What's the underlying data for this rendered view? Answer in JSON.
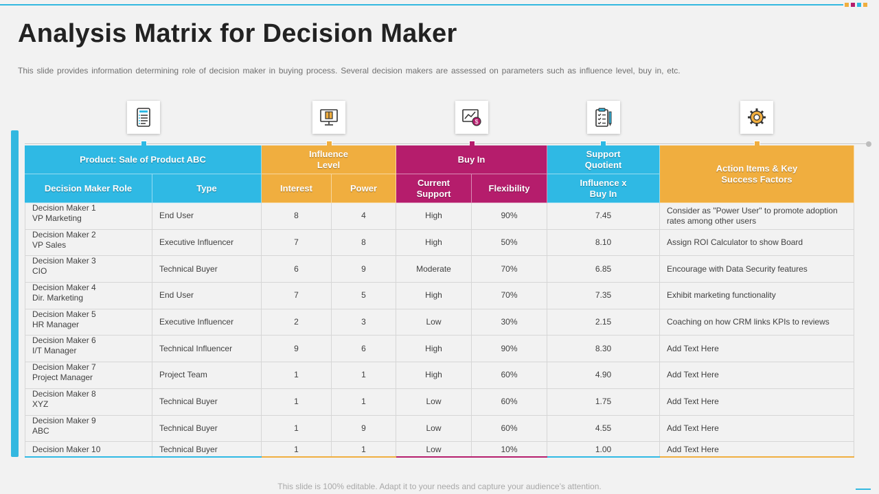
{
  "slide": {
    "title": "Analysis Matrix for Decision Maker",
    "subtitle": "This slide provides information determining role of decision maker in buying process. Several decision makers are assessed on parameters such as influence level, buy in, etc.",
    "footer": "This slide is 100% editable. Adapt it to your needs and capture your audience’s attention."
  },
  "icons": [
    "document-list-icon",
    "monitor-box-icon",
    "chart-money-icon",
    "clipboard-checklist-icon",
    "gear-head-icon"
  ],
  "colors": {
    "blue": "#2fb9e4",
    "orange": "#f0ae3f",
    "magenta": "#b51d6c"
  },
  "table": {
    "header": {
      "product": "Product:  Sale of Product ABC",
      "influence_level": "Influence Level",
      "buy_in": "Buy In",
      "support_quotient": "Support Quotient",
      "action_items": "Action Items & Key Success Factors",
      "role": "Decision Maker Role",
      "type": "Type",
      "interest": "Interest",
      "power": "Power",
      "current_support": "Current Support",
      "flexibility": "Flexibility",
      "influence_x_buy_in": "Influence  x Buy In"
    },
    "rows": [
      {
        "name": "Decision Maker 1",
        "title": "VP Marketing",
        "type": "End User",
        "interest": "8",
        "power": "4",
        "support": "High",
        "flex": "90%",
        "quotient": "7.45",
        "action": "Consider as  \"Power User\" to promote adoption rates among other users"
      },
      {
        "name": "Decision Maker 2",
        "title": "VP Sales",
        "type": "Executive Influencer",
        "interest": "7",
        "power": "8",
        "support": "High",
        "flex": "50%",
        "quotient": "8.10",
        "action": "Assign ROI Calculator to show Board"
      },
      {
        "name": "Decision Maker 3",
        "title": "CIO",
        "type": "Technical Buyer",
        "interest": "6",
        "power": "9",
        "support": "Moderate",
        "flex": "70%",
        "quotient": "6.85",
        "action": "Encourage with Data Security features"
      },
      {
        "name": "Decision Maker 4",
        "title": "Dir. Marketing",
        "type": "End User",
        "interest": "7",
        "power": "5",
        "support": "High",
        "flex": "70%",
        "quotient": "7.35",
        "action": "Exhibit marketing functionality"
      },
      {
        "name": "Decision Maker 5",
        "title": "HR Manager",
        "type": "Executive Influencer",
        "interest": "2",
        "power": "3",
        "support": "Low",
        "flex": "30%",
        "quotient": "2.15",
        "action": "Coaching on how CRM links KPIs to reviews"
      },
      {
        "name": "Decision Maker 6",
        "title": "I/T Manager",
        "type": "Technical Influencer",
        "interest": "9",
        "power": "6",
        "support": "High",
        "flex": "90%",
        "quotient": "8.30",
        "action": "Add Text Here"
      },
      {
        "name": "Decision Maker 7",
        "title": "Project Manager",
        "type": "Project Team",
        "interest": "1",
        "power": "1",
        "support": "High",
        "flex": "60%",
        "quotient": "4.90",
        "action": "Add Text Here"
      },
      {
        "name": "Decision Maker 8",
        "title": "XYZ",
        "type": "Technical Buyer",
        "interest": "1",
        "power": "1",
        "support": "Low",
        "flex": "60%",
        "quotient": "1.75",
        "action": "Add Text Here"
      },
      {
        "name": "Decision Maker 9",
        "title": "ABC",
        "type": "Technical Buyer",
        "interest": "1",
        "power": "9",
        "support": "Low",
        "flex": "60%",
        "quotient": "4.55",
        "action": "Add Text Here"
      },
      {
        "name": "Decision Maker 10",
        "title": "",
        "type": "Technical Buyer",
        "interest": "1",
        "power": "1",
        "support": "Low",
        "flex": "10%",
        "quotient": "1.00",
        "action": "Add Text Here"
      }
    ]
  }
}
